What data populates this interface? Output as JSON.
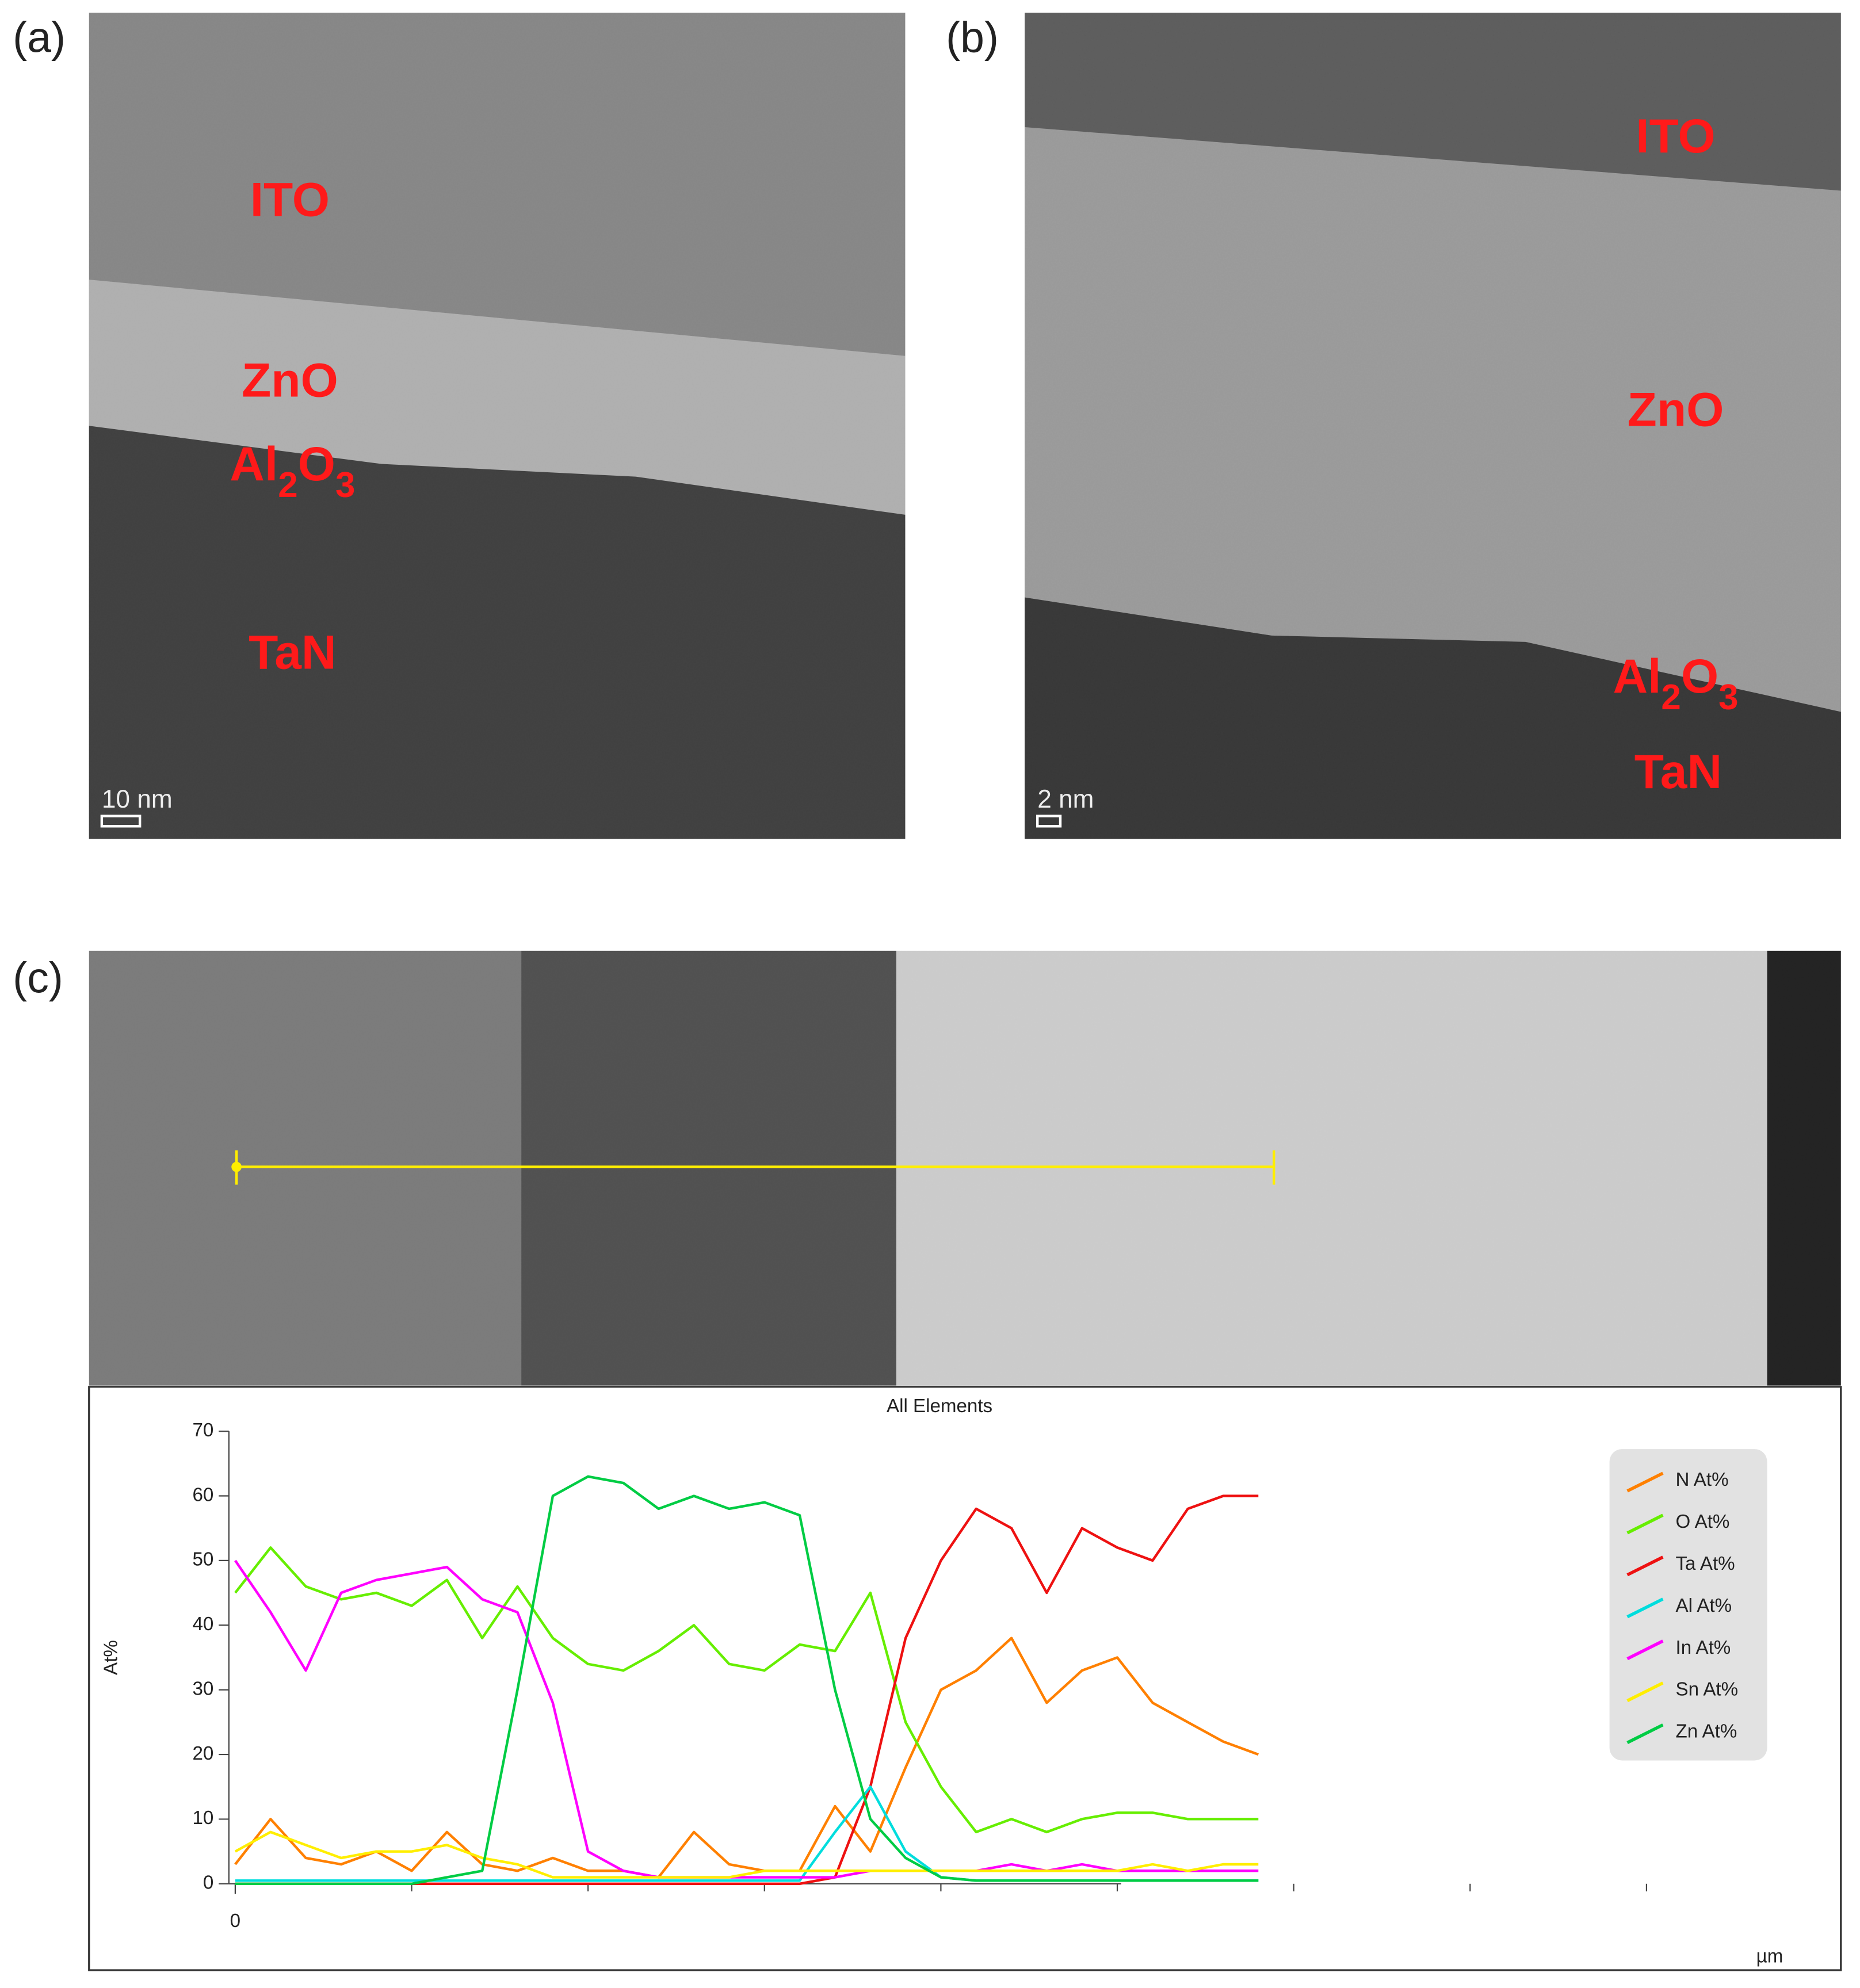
{
  "panel_a": {
    "tag": "(a)",
    "labels": [
      "ITO",
      "ZnO",
      "Al2O3",
      "TaN"
    ],
    "scale_bar": "10 nm"
  },
  "panel_b": {
    "tag": "(b)",
    "labels": [
      "ITO",
      "ZnO",
      "Al2O3",
      "TaN"
    ],
    "scale_bar": "2 nm"
  },
  "panel_c": {
    "tag": "(c)"
  },
  "chart_data": {
    "type": "line",
    "title": "All Elements",
    "y_label": "At%",
    "x_label": "µm",
    "x": [
      0,
      0.2,
      0.4,
      0.6,
      0.8,
      1.0,
      1.2,
      1.4,
      1.6,
      1.8,
      2.0,
      2.2,
      2.4,
      2.6,
      2.8,
      3.0,
      3.2,
      3.4,
      3.6,
      3.8,
      4.0,
      4.2,
      4.4,
      4.6,
      4.8,
      5.0,
      5.2,
      5.4,
      5.6,
      5.8
    ],
    "xlim": [
      0,
      8.9
    ],
    "xticks": [
      0
    ],
    "xminor": [
      1,
      2,
      3,
      4,
      5,
      6,
      7,
      8
    ],
    "ylim": [
      0,
      70
    ],
    "yticks": [
      0,
      10,
      20,
      30,
      40,
      50,
      60,
      70
    ],
    "series": [
      {
        "name": "N At%",
        "color": "#ff8000",
        "values": [
          3,
          10,
          4,
          3,
          5,
          2,
          8,
          3,
          2,
          4,
          2,
          2,
          1,
          8,
          3,
          2,
          2,
          12,
          5,
          18,
          30,
          33,
          38,
          28,
          33,
          35,
          28,
          25,
          22,
          20
        ]
      },
      {
        "name": "O At%",
        "color": "#66ee00",
        "values": [
          45,
          52,
          46,
          44,
          45,
          43,
          47,
          38,
          46,
          38,
          34,
          33,
          36,
          40,
          34,
          33,
          37,
          36,
          45,
          25,
          15,
          8,
          10,
          8,
          10,
          11,
          11,
          10,
          10,
          10
        ]
      },
      {
        "name": "Ta At%",
        "color": "#ee1111",
        "values": [
          0,
          0,
          0,
          0,
          0,
          0,
          0,
          0,
          0,
          0,
          0,
          0,
          0,
          0,
          0,
          0,
          0,
          1,
          15,
          38,
          50,
          58,
          55,
          45,
          55,
          52,
          50,
          58,
          60,
          60
        ]
      },
      {
        "name": "Al At%",
        "color": "#00dddd",
        "values": [
          0.5,
          0.5,
          0.5,
          0.5,
          0.5,
          0.5,
          0.5,
          0.5,
          0.5,
          0.5,
          0.5,
          0.5,
          0.5,
          0.5,
          0.5,
          0.5,
          0.5,
          8,
          15,
          5,
          1,
          0.5,
          0.5,
          0.5,
          0.5,
          0.5,
          0.5,
          0.5,
          0.5,
          0.5
        ]
      },
      {
        "name": "In At%",
        "color": "#ff00ff",
        "values": [
          50,
          42,
          33,
          45,
          47,
          48,
          49,
          44,
          42,
          28,
          5,
          2,
          1,
          1,
          1,
          1,
          1,
          1,
          2,
          2,
          2,
          2,
          3,
          2,
          3,
          2,
          2,
          2,
          2,
          2
        ]
      },
      {
        "name": "Sn At%",
        "color": "#ffee00",
        "values": [
          5,
          8,
          6,
          4,
          5,
          5,
          6,
          4,
          3,
          1,
          1,
          1,
          1,
          1,
          1,
          2,
          2,
          2,
          2,
          2,
          2,
          2,
          2,
          2,
          2,
          2,
          3,
          2,
          3,
          3
        ]
      },
      {
        "name": "Zn At%",
        "color": "#00cc44",
        "values": [
          0,
          0,
          0,
          0,
          0,
          0,
          1,
          2,
          30,
          60,
          63,
          62,
          58,
          60,
          58,
          59,
          57,
          30,
          10,
          4,
          1,
          0.5,
          0.5,
          0.5,
          0.5,
          0.5,
          0.5,
          0.5,
          0.5,
          0.5
        ]
      }
    ]
  }
}
